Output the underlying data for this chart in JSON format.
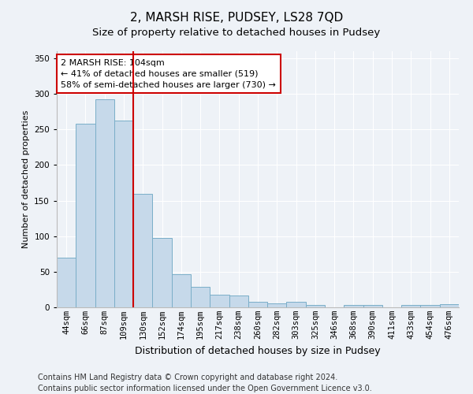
{
  "title": "2, MARSH RISE, PUDSEY, LS28 7QD",
  "subtitle": "Size of property relative to detached houses in Pudsey",
  "xlabel": "Distribution of detached houses by size in Pudsey",
  "ylabel": "Number of detached properties",
  "categories": [
    "44sqm",
    "66sqm",
    "87sqm",
    "109sqm",
    "130sqm",
    "152sqm",
    "174sqm",
    "195sqm",
    "217sqm",
    "238sqm",
    "260sqm",
    "282sqm",
    "303sqm",
    "325sqm",
    "346sqm",
    "368sqm",
    "390sqm",
    "411sqm",
    "433sqm",
    "454sqm",
    "476sqm"
  ],
  "values": [
    70,
    258,
    292,
    263,
    160,
    98,
    47,
    29,
    18,
    17,
    8,
    6,
    8,
    3,
    0,
    3,
    3,
    0,
    3,
    3,
    4
  ],
  "bar_color": "#c6d9ea",
  "bar_edge_color": "#7aaec8",
  "ref_line_index": 3,
  "ref_line_color": "#cc0000",
  "annotation_line1": "2 MARSH RISE: 104sqm",
  "annotation_line2": "← 41% of detached houses are smaller (519)",
  "annotation_line3": "58% of semi-detached houses are larger (730) →",
  "annotation_box_edge_color": "#cc0000",
  "ylim": [
    0,
    360
  ],
  "yticks": [
    0,
    50,
    100,
    150,
    200,
    250,
    300,
    350
  ],
  "footer_line1": "Contains HM Land Registry data © Crown copyright and database right 2024.",
  "footer_line2": "Contains public sector information licensed under the Open Government Licence v3.0.",
  "background_color": "#eef2f7",
  "plot_background_color": "#eef2f7",
  "title_fontsize": 11,
  "subtitle_fontsize": 9.5,
  "ylabel_fontsize": 8,
  "xlabel_fontsize": 9,
  "tick_fontsize": 7.5,
  "annotation_fontsize": 8,
  "footer_fontsize": 7
}
